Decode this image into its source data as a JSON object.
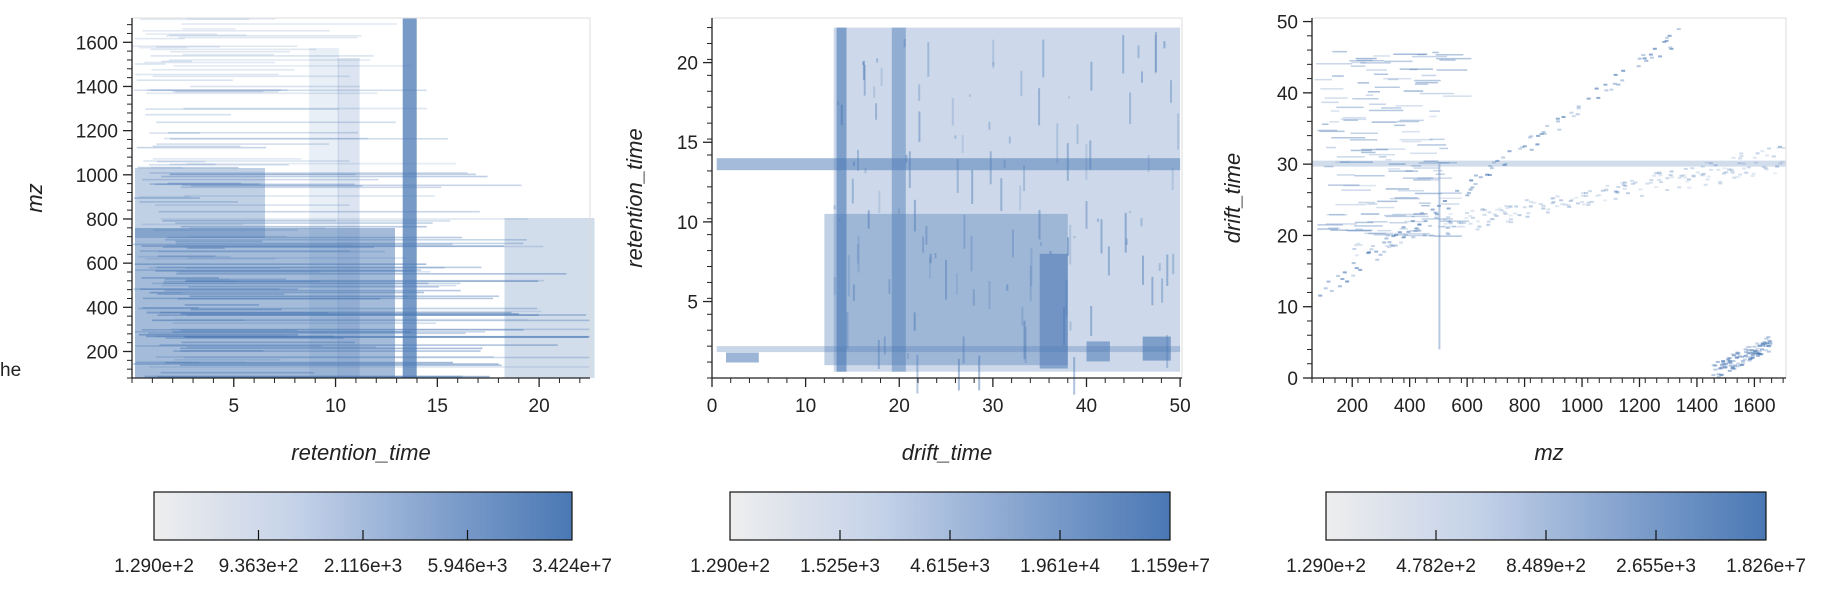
{
  "stray_label": "he",
  "chart_data": [
    {
      "type": "heatmap",
      "title": "",
      "xlabel": "retention_time",
      "ylabel": "mz",
      "xlim": [
        0,
        22.5
      ],
      "ylim": [
        80,
        1710
      ],
      "xticks": [
        5,
        10,
        15,
        20
      ],
      "yticks": [
        200,
        400,
        600,
        800,
        1000,
        1200,
        1400,
        1600
      ],
      "xticklabels": [
        "5",
        "10",
        "15",
        "20"
      ],
      "yticklabels": [
        "200",
        "400",
        "600",
        "800",
        "1000",
        "1200",
        "1400",
        "1600"
      ],
      "grid": false,
      "colormap": [
        "#eeeeee",
        "#4a78b4"
      ],
      "colorbar": {
        "ticklabels": [
          "1.290e+2",
          "9.363e+2",
          "2.116e+3",
          "5.946e+3",
          "3.424e+7"
        ]
      }
    },
    {
      "type": "heatmap",
      "title": "",
      "xlabel": "drift_time",
      "ylabel": "retention_time",
      "xlim": [
        0,
        50.2
      ],
      "ylim": [
        0.2,
        22.8
      ],
      "xticks": [
        0,
        10,
        20,
        30,
        40,
        50
      ],
      "yticks": [
        5,
        10,
        15,
        20
      ],
      "xticklabels": [
        "0",
        "10",
        "20",
        "30",
        "40",
        "50"
      ],
      "yticklabels": [
        "5",
        "10",
        "15",
        "20"
      ],
      "grid": false,
      "colormap": [
        "#eeeeee",
        "#4a78b4"
      ],
      "colorbar": {
        "ticklabels": [
          "1.290e+2",
          "1.525e+3",
          "4.615e+3",
          "1.961e+4",
          "1.159e+7"
        ]
      }
    },
    {
      "type": "heatmap",
      "title": "",
      "xlabel": "mz",
      "ylabel": "drift_time",
      "xlim": [
        60,
        1710
      ],
      "ylim": [
        0,
        50.5
      ],
      "xticks": [
        200,
        400,
        600,
        800,
        1000,
        1200,
        1400,
        1600
      ],
      "yticks": [
        0,
        10,
        20,
        30,
        40,
        50
      ],
      "xticklabels": [
        "200",
        "400",
        "600",
        "800",
        "1000",
        "1200",
        "1400",
        "1600"
      ],
      "yticklabels": [
        "0",
        "10",
        "20",
        "30",
        "40",
        "50"
      ],
      "grid": false,
      "colormap": [
        "#eeeeee",
        "#4a78b4"
      ],
      "colorbar": {
        "ticklabels": [
          "1.290e+2",
          "4.782e+2",
          "8.489e+2",
          "2.655e+3",
          "1.826e+7"
        ]
      }
    }
  ]
}
